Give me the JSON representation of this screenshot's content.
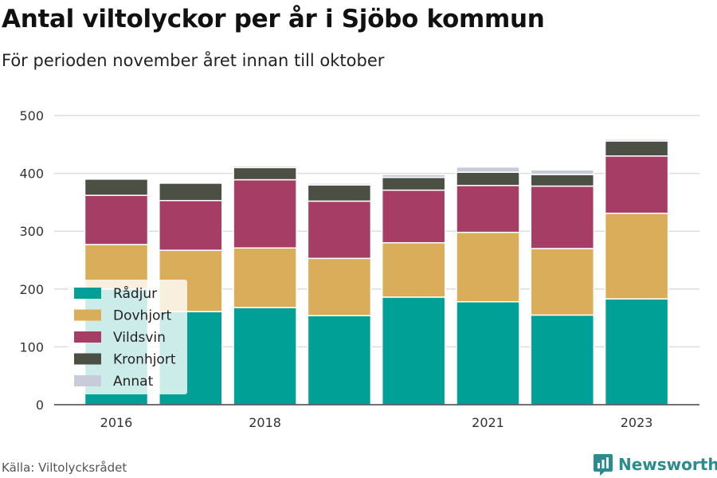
{
  "title": "Antal viltolyckor per år i Sjöbo kommun",
  "subtitle": "För perioden november året innan till oktober",
  "source": "Källa: Viltolycksrådet",
  "brand": "Newsworthy",
  "colors": {
    "Rådjur": "#00a096",
    "Dovhjort": "#d9ad5a",
    "Vildsvin": "#a63d65",
    "Kronhjort": "#4c4f43",
    "Annat": "#c8cbd9",
    "brand": "#2a8c8c"
  },
  "chart_data": {
    "type": "bar",
    "stacked": true,
    "categories": [
      "2016",
      "2017",
      "2018",
      "2019",
      "2020",
      "2021",
      "2022",
      "2023"
    ],
    "x_tick_labels": [
      "2016",
      "",
      "2018",
      "",
      "",
      "2021",
      "",
      "2023"
    ],
    "y_ticks": [
      0,
      100,
      200,
      300,
      400,
      500
    ],
    "ylim": [
      0,
      500
    ],
    "grid": true,
    "legend_position": "bottom-left",
    "series": [
      {
        "name": "Rådjur",
        "values": [
          200,
          161,
          168,
          154,
          186,
          178,
          155,
          183
        ]
      },
      {
        "name": "Dovhjort",
        "values": [
          77,
          106,
          103,
          99,
          94,
          120,
          115,
          148
        ]
      },
      {
        "name": "Vildsvin",
        "values": [
          85,
          86,
          118,
          99,
          91,
          81,
          108,
          99
        ]
      },
      {
        "name": "Kronhjort",
        "values": [
          28,
          30,
          21,
          28,
          22,
          23,
          20,
          26
        ]
      },
      {
        "name": "Annat",
        "values": [
          0,
          0,
          3,
          3,
          5,
          9,
          8,
          3
        ]
      }
    ]
  }
}
